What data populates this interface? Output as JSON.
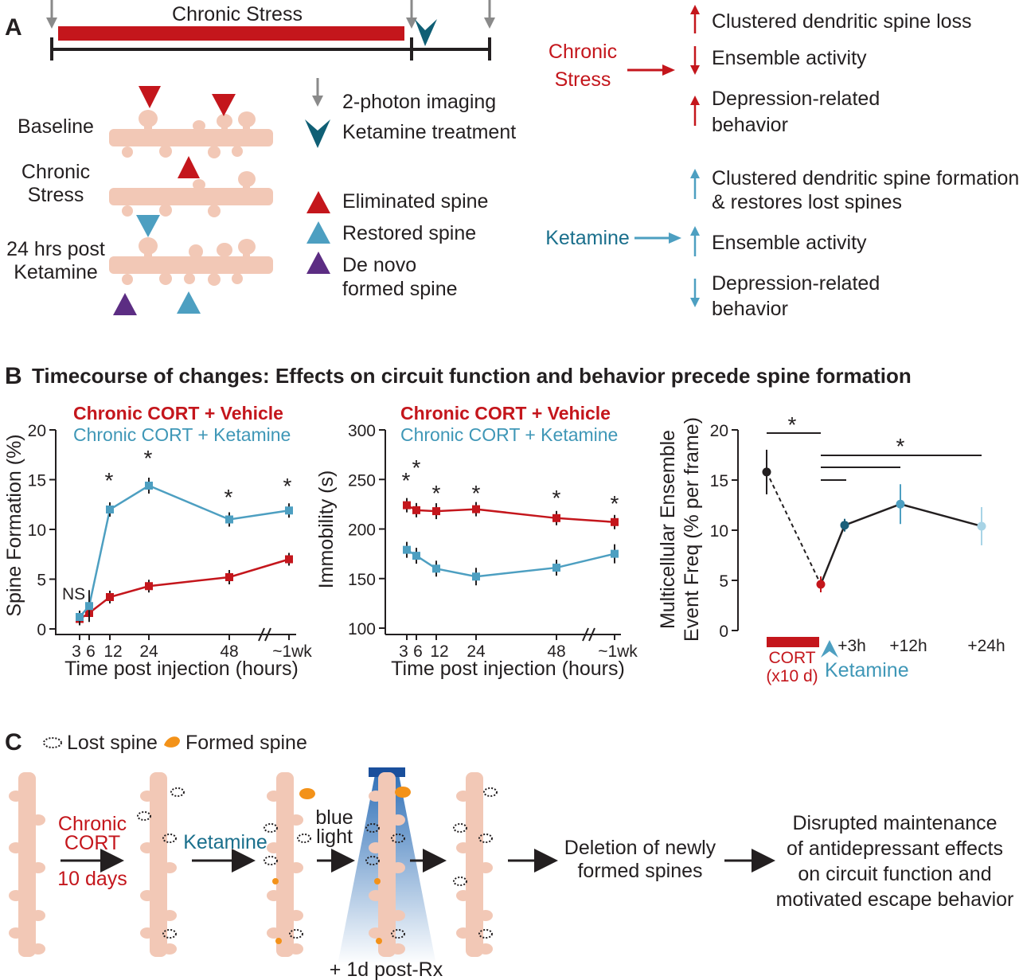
{
  "colors": {
    "red": "#c4161c",
    "teal": "#1a6f8c",
    "light_blue": "#4d9fc1",
    "purple": "#5c2d83",
    "spine": "#f2c8b6",
    "orange": "#f39219",
    "gray": "#8a8a8a"
  },
  "panel_a": {
    "label": "A",
    "timeline_label": "Chronic Stress",
    "row_labels": {
      "baseline": "Baseline",
      "chronic_1": "Chronic",
      "chronic_2": "Stress",
      "post_1": "24 hrs post",
      "post_2": "Ketamine"
    },
    "legend": {
      "imaging": "2-photon imaging",
      "ketamine": "Ketamine treatment",
      "eliminated": "Eliminated spine",
      "restored": "Restored spine",
      "denovo_1": "De novo",
      "denovo_2": "formed spine"
    },
    "stress_label_1": "Chronic",
    "stress_label_2": "Stress",
    "stress_effects": {
      "e1": "Clustered dendritic spine loss",
      "e2": "Ensemble activity",
      "e3a": "Depression-related",
      "e3b": "behavior"
    },
    "ketamine_label": "Ketamine",
    "ketamine_effects": {
      "e1a": "Clustered dendritic spine formation",
      "e1b": "& restores lost spines",
      "e2": "Ensemble activity",
      "e3a": "Depression-related",
      "e3b": "behavior"
    }
  },
  "panel_b": {
    "label": "B",
    "title": "Timecourse of changes: Effects on circuit function and behavior precede spine formation",
    "legend_vehicle": "Chronic CORT + Vehicle",
    "legend_ketamine": "Chronic CORT + Ketamine",
    "chart_data": [
      {
        "type": "line",
        "ylabel": "Spine Formation (%)",
        "xlabel": "Time post injection (hours)",
        "ylim": [
          0,
          20
        ],
        "yticks": [
          "0",
          "5",
          "10",
          "15",
          "20"
        ],
        "x_tick_labels": [
          "3",
          "6",
          "12",
          "24",
          "48",
          "~1wk"
        ],
        "axis_break": "//",
        "annotations": [
          "NS",
          "*",
          "*",
          "*",
          "*"
        ],
        "series": [
          {
            "name": "Chronic CORT + Vehicle",
            "x": [
              "3",
              "6",
              "12",
              "24",
              "48",
              "~1wk"
            ],
            "values": [
              1.0,
              1.6,
              3.2,
              4.3,
              5.2,
              7.0
            ]
          },
          {
            "name": "Chronic CORT + Ketamine",
            "x": [
              "3",
              "6",
              "12",
              "24",
              "48",
              "~1wk"
            ],
            "values": [
              1.2,
              2.3,
              12.0,
              14.4,
              11.0,
              11.9
            ]
          }
        ]
      },
      {
        "type": "line",
        "ylabel": "Immobility (s)",
        "xlabel": "Time post injection (hours)",
        "ylim": [
          100,
          300
        ],
        "yticks": [
          "100",
          "150",
          "200",
          "250",
          "300"
        ],
        "x_tick_labels": [
          "3",
          "6",
          "12",
          "24",
          "48",
          "~1wk"
        ],
        "axis_break": "//",
        "annotations": [
          "*",
          "*",
          "*",
          "*",
          "*",
          "*"
        ],
        "series": [
          {
            "name": "Chronic CORT + Vehicle",
            "x": [
              "3",
              "6",
              "12",
              "24",
              "48",
              "~1wk"
            ],
            "values": [
              224,
              219,
              218,
              220,
              211,
              207
            ]
          },
          {
            "name": "Chronic CORT + Ketamine",
            "x": [
              "3",
              "6",
              "12",
              "24",
              "48",
              "~1wk"
            ],
            "values": [
              179,
              173,
              160,
              152,
              161,
              175
            ]
          }
        ]
      },
      {
        "type": "line",
        "ylabel_1": "Multicellular Ensemble",
        "ylabel_2": "Event Freq (% per frame)",
        "ylim": [
          0,
          20
        ],
        "yticks": [
          "0",
          "5",
          "10",
          "15",
          "20"
        ],
        "x_tick_labels": [
          "+3h",
          "+12h",
          "+24h"
        ],
        "cort_label_1": "CORT",
        "cort_label_2": "(x10 d)",
        "ketamine_label": "Ketamine",
        "annotations": [
          "*",
          "*"
        ],
        "series": [
          {
            "x": [
              "baseline",
              "CORT",
              "+3h",
              "+12h",
              "+24h"
            ],
            "values": [
              15.8,
              4.6,
              10.5,
              12.6,
              10.4
            ]
          }
        ]
      }
    ]
  },
  "panel_c": {
    "label": "C",
    "legend_lost": "Lost spine",
    "legend_formed": "Formed spine",
    "step1_1": "Chronic",
    "step1_2": "CORT",
    "step1_3": "10 days",
    "step2": "Ketamine",
    "step3_1": "blue",
    "step3_2": "light",
    "light_caption": "+ 1d post-Rx",
    "result_1": "Deletion of newly",
    "result_2": "formed spines",
    "final_1": "Disrupted maintenance",
    "final_2": "of antidepressant effects",
    "final_3": "on circuit function and",
    "final_4": "motivated escape behavior"
  }
}
